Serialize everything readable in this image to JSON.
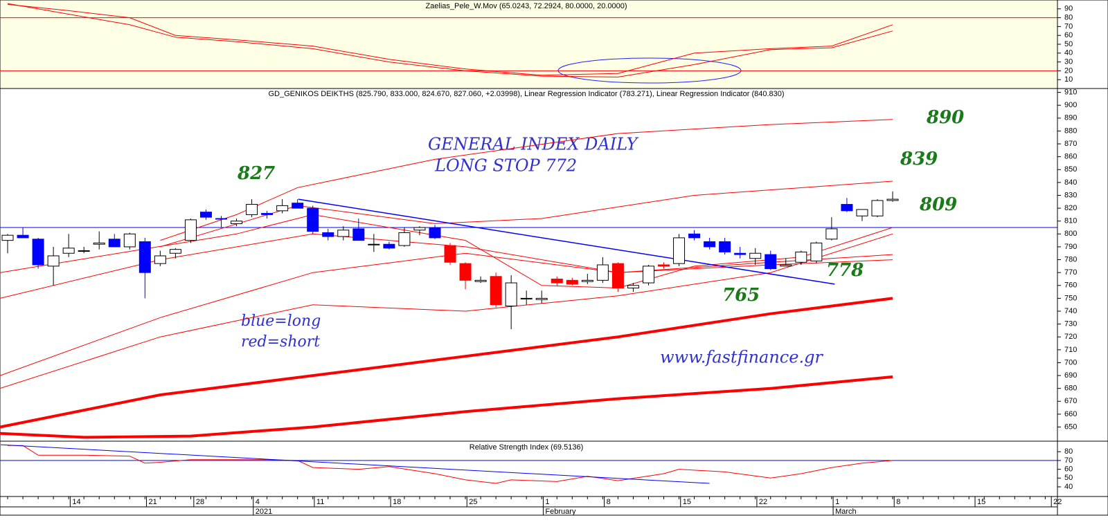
{
  "chart_data": [
    {
      "type": "line",
      "title": "Zaelias_Pele_W.Mov (65.0243, 72.2924, 80.0000, 20.0000)",
      "ylim": [
        0,
        100
      ],
      "yticks": [
        10,
        20,
        30,
        40,
        50,
        60,
        70,
        80,
        90
      ],
      "hlines": [
        80,
        20
      ],
      "hline_color": "#ff0000",
      "series": [
        {
          "color": "#ff0000",
          "x": [
            0,
            4,
            8,
            11,
            15,
            20,
            25,
            30,
            35,
            40,
            45,
            50,
            54,
            58
          ],
          "values": [
            95,
            88,
            80,
            60,
            55,
            48,
            33,
            22,
            15,
            17,
            40,
            45,
            48,
            72
          ]
        },
        {
          "color": "#ff0000",
          "x": [
            0,
            4,
            8,
            11,
            15,
            20,
            25,
            30,
            35,
            40,
            45,
            50,
            54,
            58
          ],
          "values": [
            96,
            84,
            72,
            58,
            53,
            45,
            30,
            20,
            14,
            13,
            27,
            44,
            46,
            65
          ]
        }
      ]
    },
    {
      "type": "candlestick",
      "title": "GD_GENIKOS DEIKTHS (825.790, 833.000, 824.670, 827.060, +2.03998), Linear Regression Indicator (783.271), Linear Regression Indicator (840.830)",
      "xlim": [
        -0.5,
        68.8
      ],
      "ylim": [
        639,
        913
      ],
      "yticks": [
        650,
        660,
        670,
        680,
        690,
        700,
        710,
        720,
        730,
        740,
        750,
        760,
        770,
        780,
        790,
        800,
        810,
        820,
        830,
        840,
        850,
        860,
        870,
        880,
        890,
        900,
        910
      ],
      "xticks": [
        {
          "value": 4.1,
          "label": "14"
        },
        {
          "value": 9.1,
          "label": "21"
        },
        {
          "value": 12.2,
          "label": "28"
        },
        {
          "value": 16.1,
          "label": "4"
        },
        {
          "value": 20.1,
          "label": "11"
        },
        {
          "value": 25.1,
          "label": "18"
        },
        {
          "value": 30.1,
          "label": "25"
        },
        {
          "value": 35.1,
          "label": "1"
        },
        {
          "value": 39.1,
          "label": "8"
        },
        {
          "value": 44.1,
          "label": "15"
        },
        {
          "value": 49.1,
          "label": "22"
        },
        {
          "value": 54.1,
          "label": "1"
        },
        {
          "value": 58.1,
          "label": "8"
        },
        {
          "value": 63.4,
          "label": "15"
        },
        {
          "value": 68.4,
          "label": "22"
        }
      ],
      "month_labels": [
        {
          "value": 16.1,
          "label": "2021"
        },
        {
          "value": 35.1,
          "label": "February"
        },
        {
          "value": 54.1,
          "label": "March"
        }
      ],
      "categories": [
        null,
        null,
        null,
        null,
        null,
        null,
        null,
        null,
        null,
        null,
        null,
        null,
        null,
        null,
        null,
        null,
        null,
        null,
        null,
        null,
        null,
        null,
        null,
        null,
        null,
        null,
        null,
        null,
        null,
        null,
        null,
        null,
        null,
        null,
        null,
        null,
        null,
        null,
        null,
        null,
        null,
        null,
        null,
        null,
        null,
        null,
        null,
        null,
        null,
        null,
        null,
        null,
        null,
        null,
        null,
        null,
        null,
        null,
        null
      ],
      "open": [
        795,
        799,
        796,
        775,
        785,
        787,
        792,
        796,
        790,
        794,
        777,
        785,
        795,
        817,
        812,
        808,
        815,
        816,
        818,
        824,
        820,
        801,
        798,
        804,
        792,
        792,
        791,
        803,
        805,
        791,
        777,
        763,
        767,
        744,
        750,
        749,
        765,
        764,
        763,
        764,
        777,
        758,
        762,
        776,
        777,
        800,
        794,
        794,
        785,
        785,
        784,
        776,
        778,
        779,
        796,
        823,
        814,
        814,
        826
      ],
      "high": [
        800,
        805,
        797,
        790,
        800,
        790,
        802,
        800,
        801,
        797,
        787,
        789,
        812,
        819,
        814,
        812,
        827,
        818,
        827,
        827,
        822,
        804,
        806,
        812,
        800,
        794,
        805,
        806,
        807,
        793,
        778,
        767,
        770,
        768,
        756,
        756,
        767,
        766,
        769,
        782,
        778,
        762,
        776,
        778,
        800,
        803,
        797,
        797,
        790,
        789,
        787,
        781,
        787,
        794,
        813,
        828,
        818,
        827,
        833
      ],
      "low": [
        785,
        797,
        773,
        760,
        782,
        785,
        788,
        790,
        788,
        750,
        775,
        781,
        793,
        811,
        805,
        806,
        813,
        812,
        816,
        820,
        800,
        795,
        795,
        796,
        786,
        788,
        790,
        799,
        796,
        776,
        757,
        762,
        743,
        726,
        745,
        746,
        760,
        760,
        761,
        762,
        755,
        755,
        760,
        773,
        775,
        795,
        788,
        784,
        781,
        776,
        772,
        775,
        776,
        777,
        795,
        817,
        810,
        813,
        825
      ],
      "close": [
        799,
        797,
        776,
        783,
        789,
        787,
        793,
        790,
        800,
        770,
        783,
        788,
        811,
        813,
        812,
        810,
        823,
        815,
        822,
        820,
        802,
        798,
        803,
        795,
        792,
        789,
        801,
        805,
        797,
        778,
        764,
        764,
        745,
        762,
        750,
        750,
        762,
        761,
        764,
        776,
        758,
        760,
        775,
        775,
        797,
        797,
        790,
        786,
        784,
        781,
        773,
        775,
        786,
        793,
        804,
        818,
        819,
        826,
        827
      ],
      "colors": [
        "white",
        "blue",
        "blue",
        "white",
        "white",
        "white",
        "white",
        "blue",
        "white",
        "blue",
        "white",
        "white",
        "white",
        "blue",
        "blue",
        "white",
        "white",
        "blue",
        "white",
        "blue",
        "blue",
        "blue",
        "white",
        "blue",
        "white",
        "blue",
        "white",
        "white",
        "blue",
        "red",
        "red",
        "white",
        "red",
        "white",
        "white",
        "white",
        "red",
        "red",
        "white",
        "white",
        "red",
        "white",
        "white",
        "red",
        "white",
        "blue",
        "blue",
        "blue",
        "blue",
        "white",
        "blue",
        "white",
        "white",
        "white",
        "white",
        "blue",
        "white",
        "white",
        "white"
      ],
      "palette": {
        "white": "#ffffff",
        "blue": "#0000ff",
        "red": "#ff0000"
      },
      "hlines": [
        805
      ],
      "hline_color": "#0000ff",
      "series": [
        {
          "color": "#ff0000",
          "width": 1,
          "x": [
            10,
            15,
            19,
            28,
            40,
            50,
            58
          ],
          "values": [
            795,
            815,
            836,
            858,
            878,
            885,
            889
          ]
        },
        {
          "color": "#ff0000",
          "width": 1,
          "x": [
            10,
            19,
            28,
            35,
            45,
            58
          ],
          "values": [
            790,
            822,
            808,
            812,
            830,
            841
          ]
        },
        {
          "color": "#ff0000",
          "width": 1,
          "x": [
            -0.5,
            15,
            20,
            30,
            35,
            40,
            45,
            52,
            58
          ],
          "values": [
            770,
            800,
            815,
            795,
            760,
            758,
            775,
            782,
            805
          ]
        },
        {
          "color": "#ff0000",
          "width": 1,
          "x": [
            -0.5,
            10,
            20,
            30,
            40,
            50,
            58
          ],
          "values": [
            750,
            780,
            800,
            790,
            770,
            778,
            784
          ]
        },
        {
          "color": "#ff0000",
          "width": 1,
          "x": [
            -0.5,
            10,
            20,
            30,
            40,
            50,
            58
          ],
          "values": [
            690,
            735,
            770,
            785,
            770,
            776,
            780
          ]
        },
        {
          "color": "#ff0000",
          "width": 1,
          "x": [
            -0.5,
            10,
            20,
            30,
            40,
            50,
            58
          ],
          "values": [
            680,
            720,
            745,
            740,
            752,
            770,
            800
          ]
        },
        {
          "color": "#ff0000",
          "width": 4,
          "x": [
            -0.5,
            10,
            20,
            30,
            40,
            50,
            58
          ],
          "values": [
            650,
            675,
            690,
            705,
            720,
            738,
            750
          ]
        },
        {
          "color": "#ff0000",
          "width": 4,
          "x": [
            -0.5,
            5,
            12,
            20,
            30,
            40,
            50,
            58
          ],
          "values": [
            645,
            642,
            643,
            650,
            662,
            672,
            680,
            689
          ]
        },
        {
          "color": "#0000ff",
          "width": 1.5,
          "x": [
            19.05,
            54.2
          ],
          "values": [
            827,
            761
          ]
        }
      ],
      "annotations": [
        "GENERAL INDEX DAILY",
        "LONG STOP 772",
        "blue=long",
        "red=short",
        "www.fastfinance.gr"
      ],
      "levels": [
        "827",
        "890",
        "839",
        "809",
        "778",
        "765"
      ]
    },
    {
      "type": "line",
      "title": "Relative Strength Index (69.5136)",
      "ylim": [
        29,
        92
      ],
      "yticks": [
        40,
        50,
        60,
        70,
        80
      ],
      "hlines": [
        70
      ],
      "hline_color": "#0000ff",
      "series": [
        {
          "color": "#ff0000",
          "x": [
            0,
            1,
            2,
            5,
            8,
            9,
            10,
            12,
            17,
            19,
            20,
            23,
            25,
            28,
            30,
            32,
            33,
            36,
            38,
            40,
            43,
            44,
            47,
            50,
            52,
            54,
            56,
            58
          ],
          "values": [
            87,
            87,
            76,
            76,
            75,
            67,
            68,
            71,
            71,
            70,
            62,
            60,
            63,
            55,
            48,
            44,
            48,
            46,
            52,
            47,
            55,
            60,
            57,
            50,
            55,
            62,
            67,
            70
          ]
        },
        {
          "color": "#0000ff",
          "x": [
            -0.45,
            46.0
          ],
          "values": [
            88,
            44
          ]
        }
      ]
    }
  ]
}
